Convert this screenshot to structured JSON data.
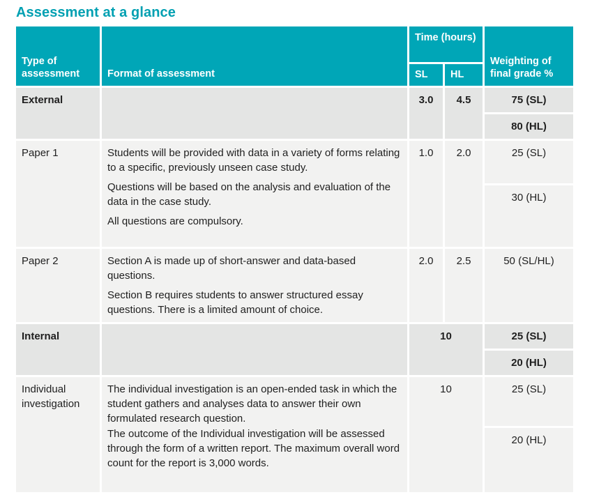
{
  "title": "Assessment at a glance",
  "colors": {
    "teal": "#00a6b7",
    "title": "#00a0b2",
    "row_shaded": "#e4e5e4",
    "row_plain": "#f2f2f1",
    "body_text": "#1f1f1f",
    "header_text": "#ffffff"
  },
  "table": {
    "headers": {
      "type": "Type of assessment",
      "format": "Format of assessment",
      "time": "Time (hours)",
      "sl": "SL",
      "hl": "HL",
      "weighting": "Weighting of final grade %"
    },
    "rows": [
      {
        "type": "External",
        "format": [],
        "sl": "3.0",
        "hl": "4.5",
        "weighting": [
          "75 (SL)",
          "80 (HL)"
        ]
      },
      {
        "type": "Paper 1",
        "format": [
          "Students will be provided with data in a variety of forms relating to a specific, previously unseen case study.",
          "Questions will be based on the analysis and evaluation of the data in the case study.",
          "All questions are compulsory."
        ],
        "sl": "1.0",
        "hl": "2.0",
        "weighting": [
          "25 (SL)",
          "30 (HL)"
        ]
      },
      {
        "type": "Paper 2",
        "format": [
          "Section A is made up of short-answer and data-based questions.",
          "Section B requires students to answer structured essay questions. There is a limited amount of choice."
        ],
        "sl": "2.0",
        "hl": "2.5",
        "weighting": [
          "50 (SL/HL)"
        ]
      },
      {
        "type": "Internal",
        "format": [],
        "time_merged": "10",
        "weighting": [
          "25 (SL)",
          "20 (HL)"
        ]
      },
      {
        "type": "Individual investigation",
        "format": [
          "The individual investigation is an open-ended task in which the student gathers and analyses data to answer their own formulated research question.",
          "The outcome of the Individual investigation will be assessed through the form of a written report. The maximum overall word count for the report is 3,000 words."
        ],
        "time_merged": "10",
        "weighting": [
          "25 (SL)",
          "20 (HL)"
        ]
      }
    ]
  }
}
